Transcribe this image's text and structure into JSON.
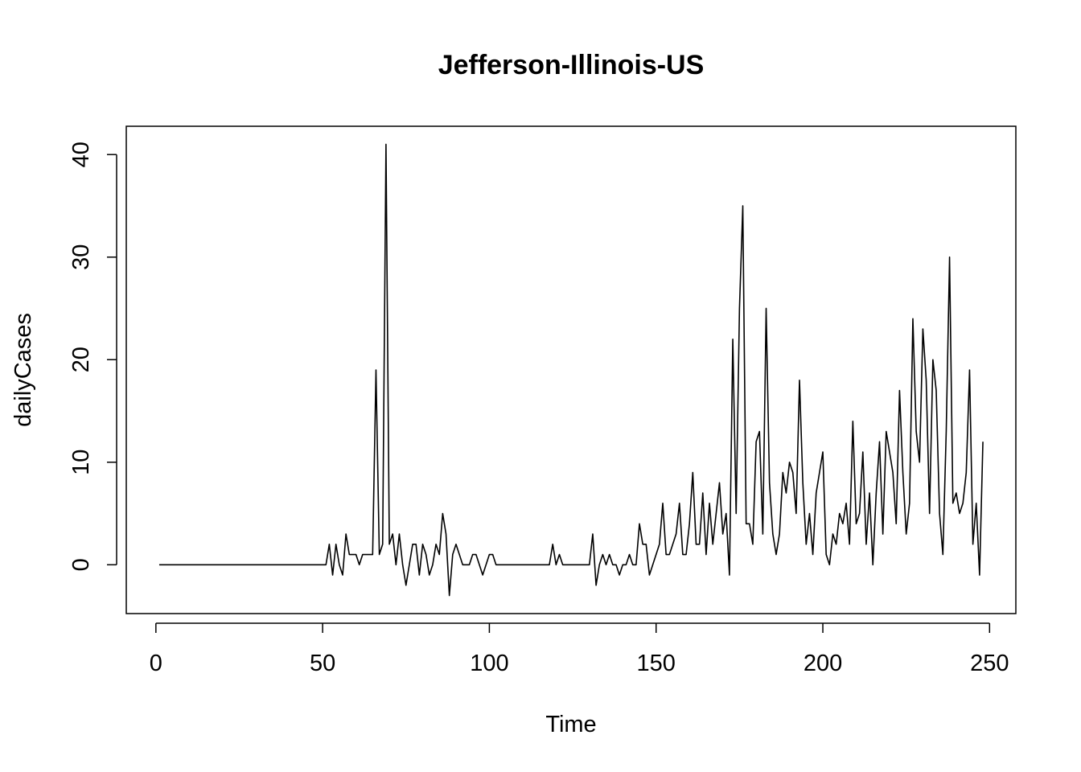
{
  "chart_data": {
    "type": "line",
    "title": "Jefferson-Illinois-US",
    "xlabel": "Time",
    "ylabel": "dailyCases",
    "xlim": [
      -8.88,
      257.88
    ],
    "ylim": [
      -4.76,
      42.76
    ],
    "x_ticks": [
      0,
      50,
      100,
      150,
      200,
      250
    ],
    "y_ticks": [
      0,
      10,
      20,
      30,
      40
    ],
    "grid": false,
    "legend": "none",
    "line_color": "#000000",
    "x_start": 1,
    "x_step": 1,
    "series": [
      {
        "values": [
          0,
          0,
          0,
          0,
          0,
          0,
          0,
          0,
          0,
          0,
          0,
          0,
          0,
          0,
          0,
          0,
          0,
          0,
          0,
          0,
          0,
          0,
          0,
          0,
          0,
          0,
          0,
          0,
          0,
          0,
          0,
          0,
          0,
          0,
          0,
          0,
          0,
          0,
          0,
          0,
          0,
          0,
          0,
          0,
          0,
          0,
          0,
          0,
          0,
          0,
          0,
          2,
          -1,
          2,
          0,
          -1,
          3,
          1,
          1,
          1,
          0,
          1,
          1,
          1,
          1,
          19,
          1,
          2,
          41,
          2,
          3,
          0,
          3,
          0,
          -2,
          0,
          2,
          2,
          -1,
          2,
          1,
          -1,
          0,
          2,
          1,
          5,
          3,
          -3,
          1,
          2,
          1,
          0,
          0,
          0,
          1,
          1,
          0,
          -1,
          0,
          1,
          1,
          0,
          0,
          0,
          0,
          0,
          0,
          0,
          0,
          0,
          0,
          0,
          0,
          0,
          0,
          0,
          0,
          0,
          2,
          0,
          1,
          0,
          0,
          0,
          0,
          0,
          0,
          0,
          0,
          0,
          3,
          -2,
          0,
          1,
          0,
          1,
          0,
          0,
          -1,
          0,
          0,
          1,
          0,
          0,
          4,
          2,
          2,
          -1,
          0,
          1,
          2,
          6,
          1,
          1,
          2,
          3,
          6,
          1,
          1,
          4,
          9,
          2,
          2,
          7,
          1,
          6,
          2,
          5,
          8,
          3,
          5,
          -1,
          22,
          5,
          25,
          35,
          4,
          4,
          2,
          12,
          13,
          3,
          25,
          8,
          3,
          1,
          3,
          9,
          7,
          10,
          9,
          5,
          18,
          8,
          2,
          5,
          1,
          7,
          9,
          11,
          1,
          0,
          3,
          2,
          5,
          4,
          6,
          2,
          14,
          4,
          5,
          11,
          2,
          7,
          0,
          7,
          12,
          3,
          13,
          11,
          9,
          4,
          17,
          9,
          3,
          6,
          24,
          13,
          10,
          23,
          18,
          5,
          20,
          17,
          5,
          1,
          13,
          30,
          6,
          7,
          5,
          6,
          9,
          19,
          2,
          6,
          -1,
          12
        ]
      }
    ]
  }
}
